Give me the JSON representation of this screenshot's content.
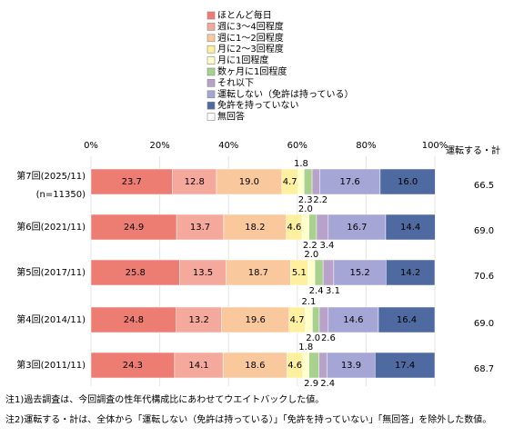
{
  "chart_data": {
    "type": "stacked-bar-horizontal",
    "categories": [
      "第7回(2025/11)",
      "第6回(2021/11)",
      "第5回(2017/11)",
      "第4回(2014/11)",
      "第3回(2011/11)"
    ],
    "sample_size": "(n=11350)",
    "xlim": [
      0,
      100
    ],
    "xticks": [
      {
        "value": 0,
        "label": "0%"
      },
      {
        "value": 20,
        "label": "20%"
      },
      {
        "value": 40,
        "label": "40%"
      },
      {
        "value": 60,
        "label": "60%"
      },
      {
        "value": 80,
        "label": "80%"
      },
      {
        "value": 100,
        "label": "100%"
      }
    ],
    "grid": true,
    "series": [
      {
        "name": "ほとんど毎日",
        "color": "#ed7d73",
        "values": [
          23.7,
          24.9,
          25.8,
          24.8,
          24.3
        ],
        "value_labels": [
          "23.7",
          "24.9",
          "25.8",
          "24.8",
          "24.3"
        ]
      },
      {
        "name": "週に3～4回程度",
        "color": "#f4a99c",
        "values": [
          12.8,
          13.7,
          13.5,
          13.2,
          14.1
        ],
        "value_labels": [
          "12.8",
          "13.7",
          "13.5",
          "13.2",
          "14.1"
        ]
      },
      {
        "name": "週に1～2回程度",
        "color": "#f9c99d",
        "values": [
          19.0,
          18.2,
          18.7,
          19.6,
          18.6
        ],
        "value_labels": [
          "19.0",
          "18.2",
          "18.7",
          "19.6",
          "18.6"
        ]
      },
      {
        "name": "月に2～3回程度",
        "color": "#fff0a0",
        "values": [
          4.7,
          4.6,
          5.1,
          4.7,
          4.6
        ],
        "value_labels": [
          "4.7",
          "4.6",
          "5.1",
          "4.7",
          "4.6"
        ]
      },
      {
        "name": "月に1回程度",
        "color": "#ffffcc",
        "values": [
          1.8,
          2.0,
          2.0,
          2.1,
          1.8
        ],
        "value_labels": [
          "1.8",
          "2.0",
          "2.0",
          "2.1",
          "1.8"
        ]
      },
      {
        "name": "数ヶ月に1回程度",
        "color": "#a9d18e",
        "values": [
          2.3,
          2.2,
          2.4,
          2.0,
          2.9
        ],
        "value_labels": [
          "2.3",
          "2.2",
          "2.4",
          "2.0",
          "2.9"
        ]
      },
      {
        "name": "それ以下",
        "color": "#b9a2c9",
        "values": [
          2.2,
          3.4,
          3.1,
          2.6,
          2.4
        ],
        "value_labels": [
          "2.2",
          "3.4",
          "3.1",
          "2.6",
          "2.4"
        ]
      },
      {
        "name": "運転しない（免許は持っている）",
        "color": "#a6a6d6",
        "values": [
          17.6,
          16.7,
          15.2,
          14.6,
          13.9
        ],
        "value_labels": [
          "17.6",
          "16.7",
          "15.2",
          "14.6",
          "13.9"
        ]
      },
      {
        "name": "免許を持っていない",
        "color": "#4f6aa0",
        "values": [
          16.0,
          14.4,
          14.2,
          16.4,
          17.4
        ],
        "value_labels": [
          "16.0",
          "14.4",
          "14.2",
          "16.4",
          "17.4"
        ]
      },
      {
        "name": "無回答",
        "color": "#ffffff",
        "values": [
          0,
          0,
          0,
          0,
          0
        ]
      }
    ],
    "totals": {
      "label": "運転する・計",
      "values": [
        66.5,
        69.0,
        70.6,
        69.0,
        68.7
      ],
      "value_labels": [
        "66.5",
        "69.0",
        "70.6",
        "69.0",
        "68.7"
      ]
    },
    "notes": [
      "注1)過去調査は、今回調査の性年代構成比にあわせてウエイトバックした値。",
      "注2)運転する・計は、全体から「運転しない（免許は持っている）」「免許を持っていない」「無回答」を除外した数値。"
    ]
  }
}
